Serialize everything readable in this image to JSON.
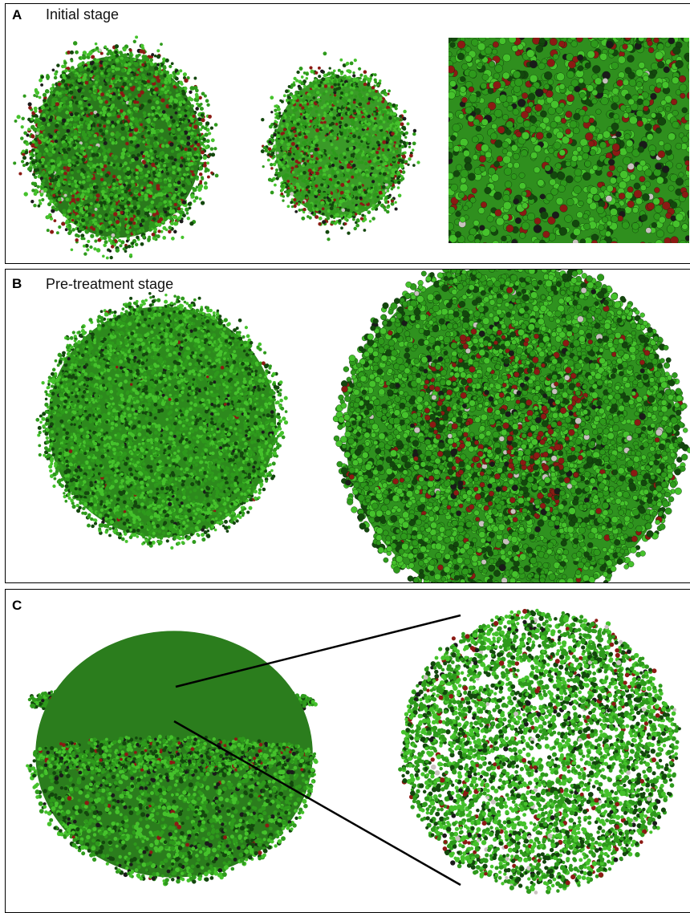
{
  "panels": {
    "a": {
      "letter": "A",
      "title": "Initial stage"
    },
    "b": {
      "letter": "B",
      "title": "Pre-treatment stage"
    },
    "c": {
      "letter": "C",
      "title": ""
    }
  },
  "colors": {
    "healthy_cell": "#2e9a1c",
    "healthy_cell_light": "#45c22c",
    "healthy_cell_dark": "#13470d",
    "dormant_cell": "#8b1a14",
    "necrotic_cell": "#1a1a1a",
    "other_cell": "#c9c2c0",
    "border": "#000000"
  }
}
